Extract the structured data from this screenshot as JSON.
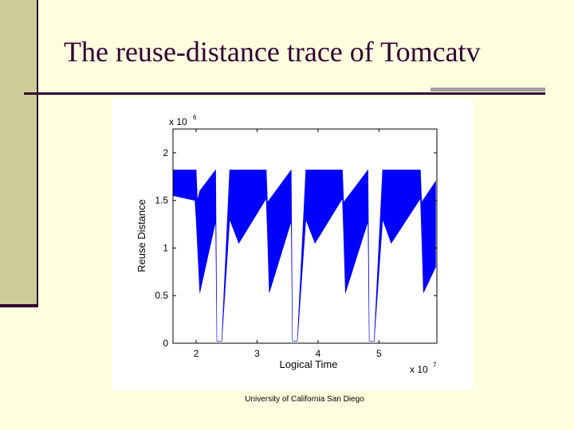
{
  "slide": {
    "title": "The reuse-distance trace of Tomcatv",
    "footer": "University of California San Diego"
  },
  "colors": {
    "band": "#cccc99",
    "accent": "#330033",
    "series": "#0000ff"
  },
  "chart_data": {
    "type": "area",
    "title": "",
    "xlabel": "Logical Time",
    "ylabel": "Reuse Distance",
    "x_multiplier_label": "x 10",
    "x_multiplier_exp": "7",
    "y_multiplier_label": "x 10",
    "y_multiplier_exp": "6",
    "xlim": [
      1.62,
      5.95
    ],
    "ylim": [
      0,
      2.25
    ],
    "x_ticks": [
      2,
      3,
      4,
      5
    ],
    "y_ticks": [
      0,
      0.5,
      1,
      1.5,
      2
    ],
    "x_tick_labels": [
      "2",
      "3",
      "4",
      "5"
    ],
    "y_tick_labels": [
      "0",
      "0.5",
      "1",
      "1.5",
      "2"
    ],
    "grid": false,
    "legend": "none",
    "series": [
      {
        "upper": [
          [
            1.62,
            1.82
          ],
          [
            2.0,
            1.82
          ],
          [
            2.02,
            1.5
          ],
          [
            2.06,
            1.6
          ],
          [
            2.32,
            1.82
          ],
          [
            2.34,
            0.02
          ],
          [
            2.42,
            0.02
          ],
          [
            2.55,
            1.82
          ],
          [
            3.15,
            1.82
          ],
          [
            3.17,
            1.48
          ],
          [
            3.56,
            1.82
          ],
          [
            3.58,
            0.02
          ],
          [
            3.66,
            0.02
          ],
          [
            3.8,
            1.82
          ],
          [
            4.4,
            1.82
          ],
          [
            4.42,
            1.48
          ],
          [
            4.82,
            1.82
          ],
          [
            4.84,
            0.02
          ],
          [
            4.92,
            0.02
          ],
          [
            5.06,
            1.82
          ],
          [
            5.68,
            1.82
          ],
          [
            5.7,
            1.48
          ],
          [
            5.93,
            1.7
          ]
        ],
        "lower": [
          [
            1.62,
            1.55
          ],
          [
            1.98,
            1.5
          ],
          [
            2.0,
            1.3
          ],
          [
            2.06,
            0.53
          ],
          [
            2.32,
            1.28
          ],
          [
            2.34,
            0.02
          ],
          [
            2.42,
            0.02
          ],
          [
            2.55,
            1.3
          ],
          [
            2.7,
            1.05
          ],
          [
            3.15,
            1.52
          ],
          [
            3.17,
            1.15
          ],
          [
            3.2,
            0.53
          ],
          [
            3.56,
            1.28
          ],
          [
            3.58,
            0.02
          ],
          [
            3.66,
            0.02
          ],
          [
            3.8,
            1.3
          ],
          [
            3.95,
            1.05
          ],
          [
            4.4,
            1.52
          ],
          [
            4.42,
            1.15
          ],
          [
            4.45,
            0.53
          ],
          [
            4.82,
            1.28
          ],
          [
            4.84,
            0.02
          ],
          [
            4.92,
            0.02
          ],
          [
            5.06,
            1.3
          ],
          [
            5.2,
            1.05
          ],
          [
            5.68,
            1.52
          ],
          [
            5.7,
            1.15
          ],
          [
            5.73,
            0.53
          ],
          [
            5.93,
            0.8
          ]
        ]
      }
    ]
  }
}
